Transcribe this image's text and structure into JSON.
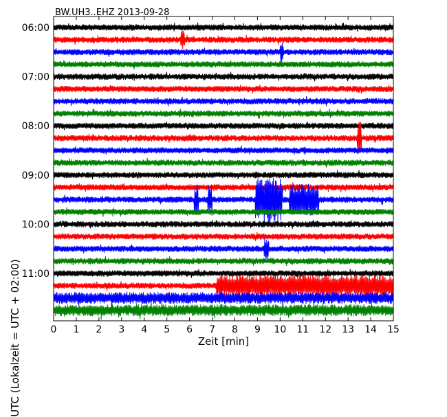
{
  "chart_data": {
    "type": "line",
    "title": "BW.UH3..EHZ 2013-09-28",
    "xlabel": "Zeit  [min]",
    "ylabel": "UTC (Lokalzeit = UTC + 02:00)",
    "xlim": [
      0,
      15
    ],
    "x_ticks": [
      "0",
      "1",
      "2",
      "3",
      "4",
      "5",
      "6",
      "7",
      "8",
      "9",
      "10",
      "11",
      "12",
      "13",
      "14",
      "15"
    ],
    "y_tick_labels": [
      "06:00",
      "07:00",
      "08:00",
      "09:00",
      "10:00",
      "11:00"
    ],
    "trace_count": 24,
    "trace_interval_min": 15,
    "trace_colors": [
      "#000000",
      "#ff0000",
      "#0000ff",
      "#008000"
    ],
    "events": [
      {
        "trace": 1,
        "start": 5.6,
        "end": 5.8,
        "amplitude": 1.6
      },
      {
        "trace": 2,
        "start": 10.0,
        "end": 10.15,
        "amplitude": 1.8
      },
      {
        "trace": 9,
        "start": 13.4,
        "end": 13.6,
        "amplitude": 3.0
      },
      {
        "trace": 14,
        "start": 6.2,
        "end": 6.4,
        "amplitude": 2.5
      },
      {
        "trace": 14,
        "start": 6.8,
        "end": 7.0,
        "amplitude": 2.8
      },
      {
        "trace": 14,
        "start": 8.9,
        "end": 10.1,
        "amplitude": 3.8
      },
      {
        "trace": 14,
        "start": 10.4,
        "end": 11.7,
        "amplitude": 2.6
      },
      {
        "trace": 18,
        "start": 9.3,
        "end": 9.5,
        "amplitude": 2.0
      },
      {
        "trace": 21,
        "start": 7.2,
        "end": 15.0,
        "amplitude": 1.9
      }
    ],
    "grid": false,
    "legend": "none"
  }
}
